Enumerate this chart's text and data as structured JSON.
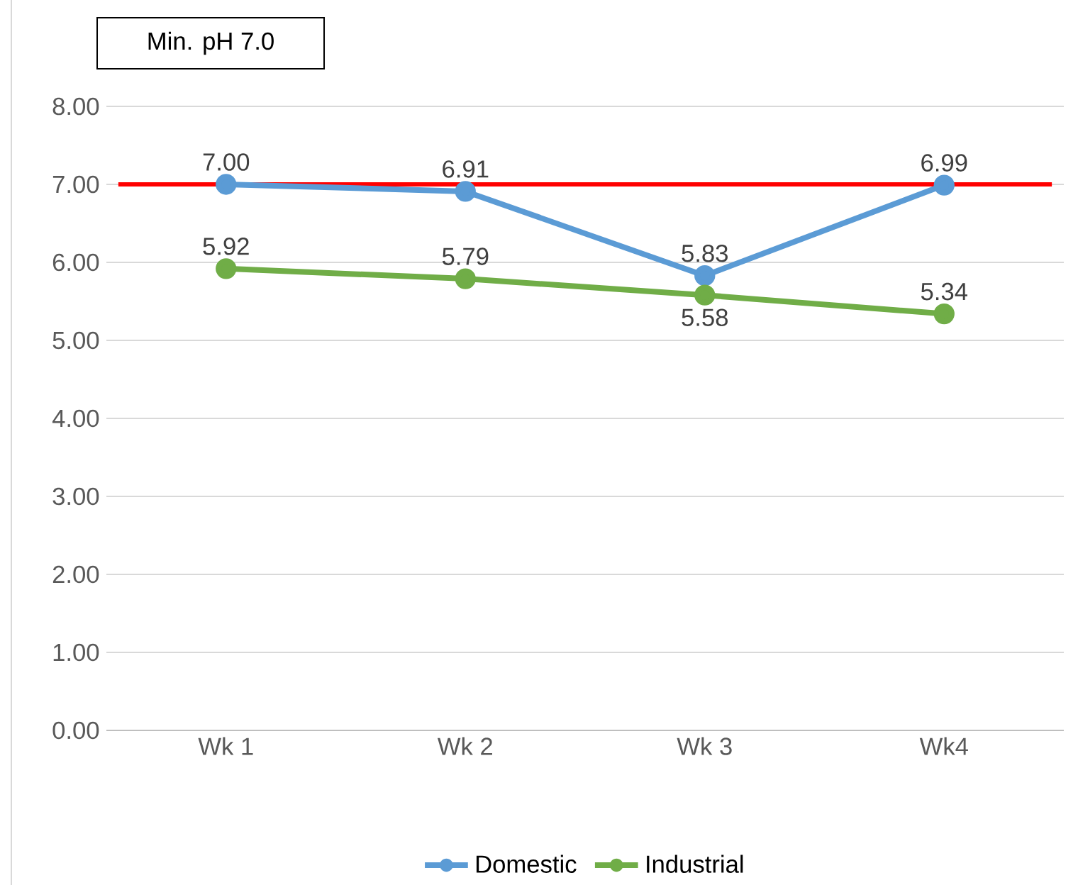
{
  "chart_data": {
    "type": "line",
    "categories": [
      "Wk 1",
      "Wk 2",
      "Wk 3",
      "Wk4"
    ],
    "series": [
      {
        "name": "Domestic",
        "color": "#5b9bd5",
        "values": [
          7.0,
          6.91,
          5.83,
          6.99
        ],
        "value_labels": [
          "7.00",
          "6.91",
          "5.83",
          "6.99"
        ]
      },
      {
        "name": "Industrial",
        "color": "#70ad47",
        "values": [
          5.92,
          5.79,
          5.58,
          5.34
        ],
        "value_labels": [
          "5.92",
          "5.79",
          "5.58",
          "5.34"
        ]
      }
    ],
    "ylim": [
      0,
      8
    ],
    "yticks": [
      {
        "value": 0,
        "label": "0.00"
      },
      {
        "value": 1,
        "label": "1.00"
      },
      {
        "value": 2,
        "label": "2.00"
      },
      {
        "value": 3,
        "label": "3.00"
      },
      {
        "value": 4,
        "label": "4.00"
      },
      {
        "value": 5,
        "label": "5.00"
      },
      {
        "value": 6,
        "label": "6.00"
      },
      {
        "value": 7,
        "label": "7.00"
      },
      {
        "value": 8,
        "label": "8.00"
      }
    ],
    "ref_lines": [
      {
        "axis": "y",
        "value": 7.0,
        "color": "#ff0000"
      }
    ],
    "annotations": [
      "Min. pH 7.0"
    ],
    "grid": "y",
    "legend": "bottom",
    "marker": "circle",
    "line_style": "solid"
  }
}
